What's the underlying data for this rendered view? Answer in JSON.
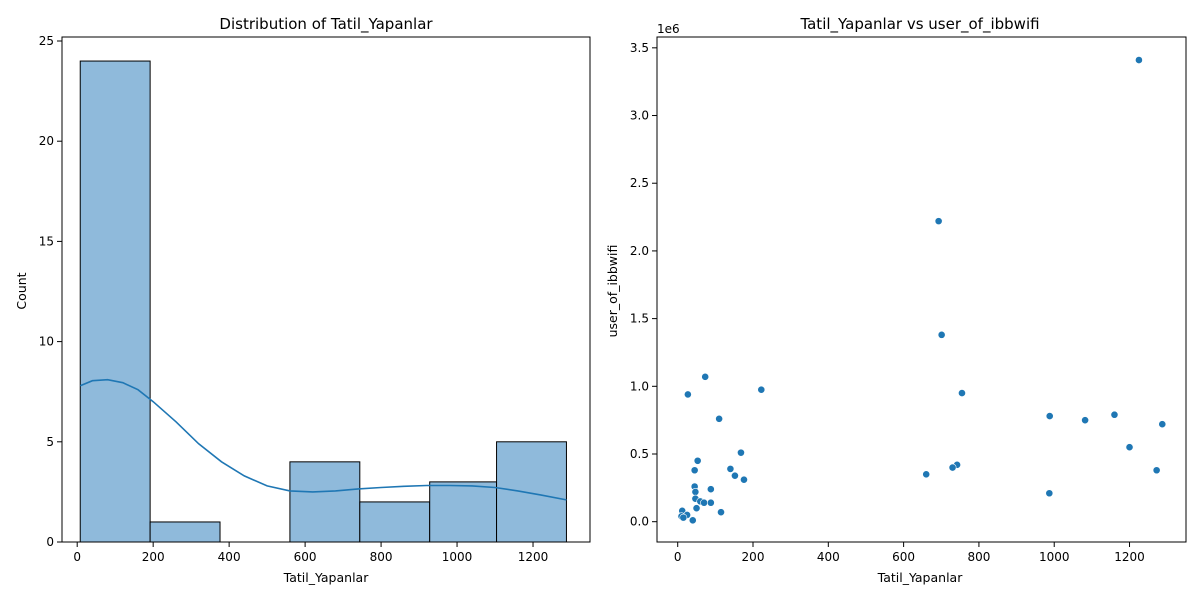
{
  "chart_data": [
    {
      "type": "histogram",
      "title": "Distribution of Tatil_Yapanlar",
      "xlabel": "Tatil_Yapanlar",
      "ylabel": "Count",
      "xlim": [
        -40,
        1350
      ],
      "ylim": [
        0,
        25.2
      ],
      "xticks": [
        0,
        200,
        400,
        600,
        800,
        1000,
        1200
      ],
      "yticks": [
        0,
        5,
        10,
        15,
        20,
        25
      ],
      "bin_edges": [
        8,
        192,
        376,
        560,
        744,
        928,
        1104,
        1288
      ],
      "counts": [
        24,
        1,
        0,
        4,
        2,
        3,
        5
      ],
      "bar_color": "#8fbadb",
      "edge_color": "#000000",
      "kde": {
        "color": "#1f77b4",
        "x": [
          8,
          40,
          80,
          120,
          160,
          200,
          260,
          320,
          380,
          440,
          500,
          560,
          620,
          680,
          740,
          800,
          860,
          920,
          980,
          1040,
          1100,
          1160,
          1220,
          1288
        ],
        "y": [
          7.8,
          8.05,
          8.1,
          7.95,
          7.6,
          7.0,
          6.0,
          4.9,
          4.0,
          3.3,
          2.8,
          2.55,
          2.5,
          2.55,
          2.65,
          2.72,
          2.78,
          2.82,
          2.82,
          2.8,
          2.72,
          2.55,
          2.35,
          2.1
        ]
      }
    },
    {
      "type": "scatter",
      "title": "Tatil_Yapanlar vs user_of_ibbwifi",
      "xlabel": "Tatil_Yapanlar",
      "ylabel": "user_of_ibbwifi",
      "y_scale_label": "1e6",
      "xlim": [
        -55,
        1350
      ],
      "ylim": [
        -0.15,
        3.58
      ],
      "xticks": [
        0,
        200,
        400,
        600,
        800,
        1000,
        1200
      ],
      "yticks": [
        "0.0",
        "0.5",
        "1.0",
        "1.5",
        "2.0",
        "2.5",
        "3.0",
        "3.5"
      ],
      "point_color": "#1f77b4",
      "points": [
        [
          1225,
          3.41
        ],
        [
          693,
          2.22
        ],
        [
          701,
          1.38
        ],
        [
          73,
          1.07
        ],
        [
          222,
          0.975
        ],
        [
          755,
          0.95
        ],
        [
          27,
          0.94
        ],
        [
          988,
          0.78
        ],
        [
          1160,
          0.79
        ],
        [
          110,
          0.76
        ],
        [
          1082,
          0.75
        ],
        [
          1287,
          0.72
        ],
        [
          1200,
          0.55
        ],
        [
          168,
          0.51
        ],
        [
          53,
          0.45
        ],
        [
          742,
          0.42
        ],
        [
          730,
          0.4
        ],
        [
          140,
          0.39
        ],
        [
          45,
          0.38
        ],
        [
          1272,
          0.38
        ],
        [
          660,
          0.35
        ],
        [
          152,
          0.34
        ],
        [
          176,
          0.31
        ],
        [
          45,
          0.26
        ],
        [
          88,
          0.24
        ],
        [
          47,
          0.22
        ],
        [
          987,
          0.21
        ],
        [
          47,
          0.17
        ],
        [
          60,
          0.15
        ],
        [
          70,
          0.14
        ],
        [
          88,
          0.14
        ],
        [
          50,
          0.1
        ],
        [
          12,
          0.08
        ],
        [
          115,
          0.07
        ],
        [
          25,
          0.05
        ],
        [
          10,
          0.04
        ],
        [
          15,
          0.03
        ],
        [
          40,
          0.01
        ]
      ]
    }
  ]
}
